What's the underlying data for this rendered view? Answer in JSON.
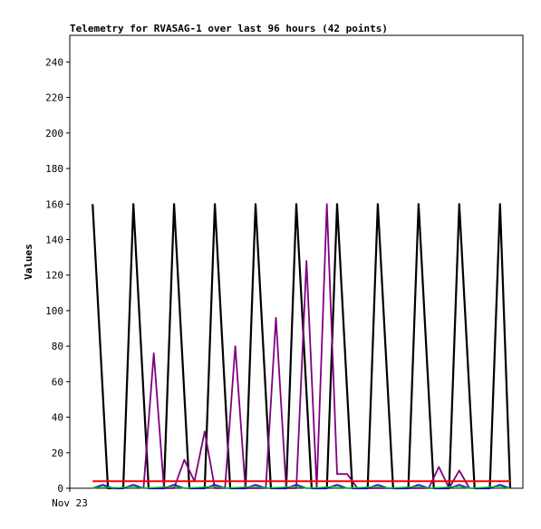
{
  "chart_data": {
    "type": "line",
    "title": "Telemetry for RVASAG-1 over last 96 hours (42 points)",
    "xlabel": "",
    "ylabel": "Values",
    "x_tick_labels": [
      "Nov 23"
    ],
    "ylim": [
      0,
      255
    ],
    "y_ticks": [
      0,
      20,
      40,
      60,
      80,
      100,
      120,
      140,
      160,
      180,
      200,
      220,
      240
    ],
    "grid": false,
    "legend": false,
    "x_range": [
      0,
      42
    ],
    "series": [
      {
        "color": "#000000",
        "stroke_width": 2.2,
        "points": [
          [
            1,
            160
          ],
          [
            2.5,
            0
          ],
          [
            4,
            0
          ],
          [
            5,
            160
          ],
          [
            6.5,
            0
          ],
          [
            8,
            0
          ],
          [
            9,
            160
          ],
          [
            10.5,
            0
          ],
          [
            12,
            0
          ],
          [
            13,
            160
          ],
          [
            14.5,
            0
          ],
          [
            16,
            0
          ],
          [
            17,
            160
          ],
          [
            18.5,
            0
          ],
          [
            20,
            0
          ],
          [
            21,
            160
          ],
          [
            22.5,
            0
          ],
          [
            24,
            0
          ],
          [
            25,
            160
          ],
          [
            26.5,
            0
          ],
          [
            28,
            0
          ],
          [
            29,
            160
          ],
          [
            30.5,
            0
          ],
          [
            32,
            0
          ],
          [
            33,
            160
          ],
          [
            34.5,
            0
          ],
          [
            36,
            0
          ],
          [
            37,
            160
          ],
          [
            38.5,
            0
          ],
          [
            40,
            0
          ],
          [
            41,
            160
          ],
          [
            42,
            0
          ]
        ]
      },
      {
        "color": "#800080",
        "stroke_width": 1.8,
        "points": [
          [
            6,
            0
          ],
          [
            7,
            76
          ],
          [
            8,
            0
          ],
          [
            9,
            0
          ],
          [
            10,
            16
          ],
          [
            11,
            4
          ],
          [
            12,
            32
          ],
          [
            13,
            0
          ],
          [
            14,
            0
          ],
          [
            15,
            80
          ],
          [
            16,
            0
          ],
          [
            17,
            0
          ],
          [
            18,
            0
          ],
          [
            19,
            96
          ],
          [
            20,
            0
          ],
          [
            21,
            0
          ],
          [
            22,
            128
          ],
          [
            23,
            0
          ],
          [
            24,
            160
          ],
          [
            25,
            8
          ],
          [
            26,
            8
          ],
          [
            27,
            0
          ],
          [
            34,
            0
          ],
          [
            35,
            12
          ],
          [
            36,
            0
          ],
          [
            37,
            10
          ],
          [
            38,
            0
          ]
        ]
      },
      {
        "color": "#0000ff",
        "stroke_width": 1.5,
        "points": [
          [
            1,
            0
          ],
          [
            2,
            2
          ],
          [
            3,
            0
          ],
          [
            4,
            0
          ],
          [
            5,
            2
          ],
          [
            6,
            0
          ],
          [
            8,
            0
          ],
          [
            9,
            2
          ],
          [
            10,
            0
          ],
          [
            12,
            0
          ],
          [
            13,
            2
          ],
          [
            14,
            0
          ],
          [
            16,
            0
          ],
          [
            17,
            2
          ],
          [
            18,
            0
          ],
          [
            20,
            0
          ],
          [
            21,
            2
          ],
          [
            22,
            0
          ],
          [
            24,
            0
          ],
          [
            25,
            2
          ],
          [
            26,
            0
          ],
          [
            28,
            0
          ],
          [
            29,
            2
          ],
          [
            30,
            0
          ],
          [
            32,
            0
          ],
          [
            33,
            2
          ],
          [
            34,
            0
          ],
          [
            36,
            0
          ],
          [
            37,
            2
          ],
          [
            38,
            0
          ],
          [
            40,
            0
          ],
          [
            41,
            2
          ],
          [
            42,
            0
          ]
        ]
      },
      {
        "color": "#00cc00",
        "stroke_width": 1.2,
        "points": [
          [
            1,
            0
          ],
          [
            2,
            1
          ],
          [
            3,
            0
          ],
          [
            5,
            1
          ],
          [
            6,
            0
          ],
          [
            9,
            1
          ],
          [
            10,
            0
          ],
          [
            13,
            1
          ],
          [
            14,
            0
          ],
          [
            17,
            1
          ],
          [
            18,
            0
          ],
          [
            21,
            1
          ],
          [
            22,
            0
          ],
          [
            25,
            1
          ],
          [
            26,
            0
          ],
          [
            29,
            1
          ],
          [
            30,
            0
          ],
          [
            33,
            1
          ],
          [
            34,
            0
          ],
          [
            37,
            1
          ],
          [
            38,
            0
          ],
          [
            41,
            1
          ],
          [
            42,
            0
          ]
        ]
      },
      {
        "color": "#ff0000",
        "stroke_width": 2,
        "points": [
          [
            1,
            4
          ],
          [
            42,
            4
          ]
        ]
      }
    ]
  }
}
